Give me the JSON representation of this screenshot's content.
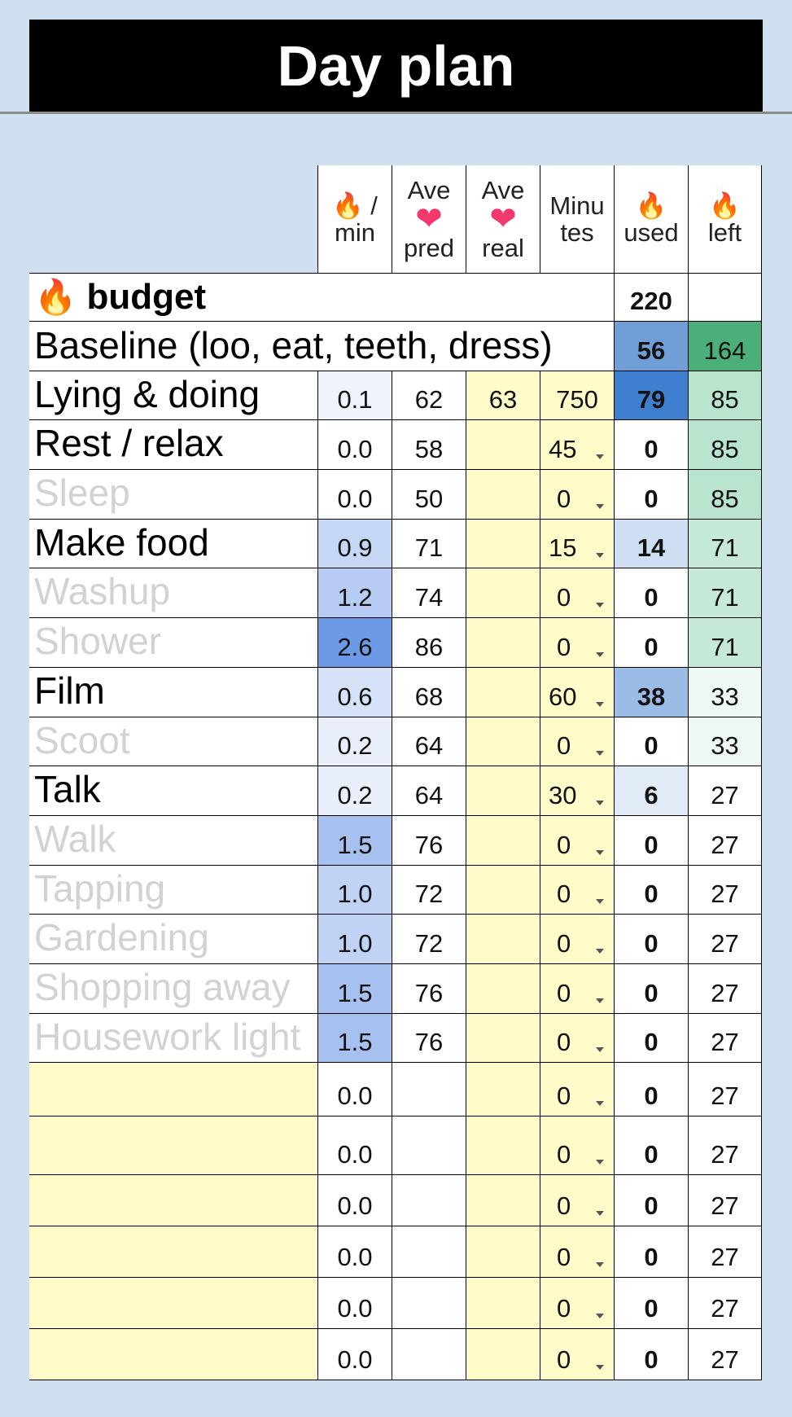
{
  "title": "Day plan",
  "headers": {
    "rate": {
      "icon": "fire-icon",
      "l1": "/",
      "l2": "min"
    },
    "pred": {
      "l1": "Ave",
      "icon": "heart-icon",
      "l2": "pred"
    },
    "real": {
      "l1": "Ave",
      "icon": "heart-icon",
      "l2": "real"
    },
    "minutes": {
      "l1": "Minu",
      "l2": "tes"
    },
    "used": {
      "icon": "fire-icon",
      "l2": "used"
    },
    "left": {
      "icon": "fire-icon",
      "l2": "left"
    }
  },
  "budget": {
    "label": "budget",
    "value": "220"
  },
  "baseline": {
    "label": "Baseline (loo, eat, teeth, dress)",
    "used": "56",
    "left": "164"
  },
  "rows": [
    {
      "name": "Lying & doing",
      "active": true,
      "rate": "0.1",
      "pred": "62",
      "real": "63",
      "minutes": "750",
      "used": "79",
      "left": "85"
    },
    {
      "name": "Rest / relax",
      "active": true,
      "rate": "0.0",
      "pred": "58",
      "real": "",
      "minutes": "45",
      "used": "0",
      "left": "85"
    },
    {
      "name": "Sleep",
      "active": false,
      "rate": "0.0",
      "pred": "50",
      "real": "",
      "minutes": "0",
      "used": "0",
      "left": "85"
    },
    {
      "name": "Make food",
      "active": true,
      "rate": "0.9",
      "pred": "71",
      "real": "",
      "minutes": "15",
      "used": "14",
      "left": "71"
    },
    {
      "name": "Washup",
      "active": false,
      "rate": "1.2",
      "pred": "74",
      "real": "",
      "minutes": "0",
      "used": "0",
      "left": "71"
    },
    {
      "name": "Shower",
      "active": false,
      "rate": "2.6",
      "pred": "86",
      "real": "",
      "minutes": "0",
      "used": "0",
      "left": "71"
    },
    {
      "name": "Film",
      "active": true,
      "rate": "0.6",
      "pred": "68",
      "real": "",
      "minutes": "60",
      "used": "38",
      "left": "33"
    },
    {
      "name": "Scoot",
      "active": false,
      "rate": "0.2",
      "pred": "64",
      "real": "",
      "minutes": "0",
      "used": "0",
      "left": "33"
    },
    {
      "name": "Talk",
      "active": true,
      "rate": "0.2",
      "pred": "64",
      "real": "",
      "minutes": "30",
      "used": "6",
      "left": "27"
    },
    {
      "name": "Walk",
      "active": false,
      "rate": "1.5",
      "pred": "76",
      "real": "",
      "minutes": "0",
      "used": "0",
      "left": "27"
    },
    {
      "name": "Tapping",
      "active": false,
      "rate": "1.0",
      "pred": "72",
      "real": "",
      "minutes": "0",
      "used": "0",
      "left": "27"
    },
    {
      "name": "Gardening",
      "active": false,
      "rate": "1.0",
      "pred": "72",
      "real": "",
      "minutes": "0",
      "used": "0",
      "left": "27"
    },
    {
      "name": "Shopping away",
      "active": false,
      "rate": "1.5",
      "pred": "76",
      "real": "",
      "minutes": "0",
      "used": "0",
      "left": "27"
    },
    {
      "name": "Housework light",
      "active": false,
      "rate": "1.5",
      "pred": "76",
      "real": "",
      "minutes": "0",
      "used": "0",
      "left": "27"
    },
    {
      "name": "",
      "active": false,
      "rate": "0.0",
      "pred": "",
      "real": "",
      "minutes": "0",
      "used": "0",
      "left": "27"
    },
    {
      "name": "",
      "active": false,
      "rate": "0.0",
      "pred": "",
      "real": "",
      "minutes": "0",
      "used": "0",
      "left": "27"
    },
    {
      "name": "",
      "active": false,
      "rate": "0.0",
      "pred": "",
      "real": "",
      "minutes": "0",
      "used": "0",
      "left": "27"
    },
    {
      "name": "",
      "active": false,
      "rate": "0.0",
      "pred": "",
      "real": "",
      "minutes": "0",
      "used": "0",
      "left": "27"
    },
    {
      "name": "",
      "active": false,
      "rate": "0.0",
      "pred": "",
      "real": "",
      "minutes": "0",
      "used": "0",
      "left": "27"
    },
    {
      "name": "",
      "active": false,
      "rate": "0.0",
      "pred": "",
      "real": "",
      "minutes": "0",
      "used": "0",
      "left": "27"
    }
  ],
  "colors": {
    "background": "#cfe0f1",
    "title_bg": "#000000",
    "input_yellow": "#fffcca",
    "dim_text": "#d2d2d2",
    "used_strong": "#3f7fcf",
    "left_strong": "#4aaf78"
  }
}
